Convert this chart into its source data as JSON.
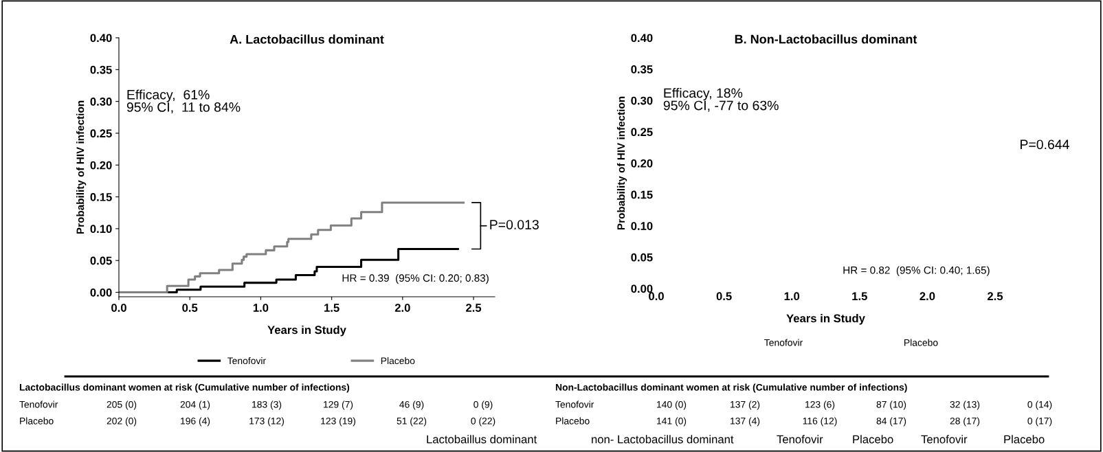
{
  "chart_data": [
    {
      "type": "step",
      "title": "A. Lactobacillus dominant",
      "xlabel": "Years in Study",
      "ylabel": "Probability of HIV infection",
      "xlim": [
        0,
        2.65
      ],
      "ylim": [
        -0.007,
        0.4
      ],
      "xticks": [
        {
          "value": 0,
          "label": "0.0"
        },
        {
          "value": 0.5,
          "label": "0.5"
        },
        {
          "value": 1,
          "label": "1.0"
        },
        {
          "value": 1.5,
          "label": "1.5"
        },
        {
          "value": 2,
          "label": "2.0"
        },
        {
          "value": 2.5,
          "label": "2.5"
        }
      ],
      "yticks": [
        {
          "value": 0,
          "label": "0.00"
        },
        {
          "value": 0.05,
          "label": "0.05"
        },
        {
          "value": 0.1,
          "label": "0.10"
        },
        {
          "value": 0.15,
          "label": "0.15"
        },
        {
          "value": 0.2,
          "label": "0.20"
        },
        {
          "value": 0.25,
          "label": "0.25"
        },
        {
          "value": 0.3,
          "label": "0.30"
        },
        {
          "value": 0.35,
          "label": "0.35"
        },
        {
          "value": 0.4,
          "label": "0.40"
        }
      ],
      "grid": false,
      "legend": "bottom",
      "marker": "none",
      "line_style": "solid",
      "series": [
        {
          "name": "Tenofovir",
          "color": "#000000",
          "x": [
            0,
            0.408,
            0.576,
            0.885,
            1.11,
            1.247,
            1.38,
            1.395,
            1.708,
            1.97,
            2.39
          ],
          "values": [
            0,
            0.004,
            0.009,
            0.015,
            0.02,
            0.027,
            0.033,
            0.04,
            0.051,
            0.068,
            0.068
          ]
        },
        {
          "name": "Placebo",
          "color": "#808080",
          "x": [
            0,
            0.34,
            0.49,
            0.536,
            0.572,
            0.706,
            0.801,
            0.867,
            0.88,
            0.9,
            1.036,
            1.095,
            1.186,
            1.195,
            1.356,
            1.404,
            1.494,
            1.639,
            1.708,
            1.855,
            2.43
          ],
          "values": [
            0,
            0.01,
            0.02,
            0.025,
            0.03,
            0.035,
            0.045,
            0.051,
            0.056,
            0.06,
            0.066,
            0.072,
            0.079,
            0.084,
            0.091,
            0.098,
            0.105,
            0.116,
            0.126,
            0.141,
            0.141
          ]
        }
      ],
      "annotations": [
        "Efficacy,  61%\n95% CI,  11 to 84%",
        "HR = 0.39  (95% CI: 0.20; 0.83)",
        "P=0.013",
        "Lactobacillus dominant women at risk (Cumulative number of infections)",
        "Tenofovir  205 (0)  204 (1)  183 (3)  129 (7)  46 (9)  0 (9)",
        "Placebo  202 (0)  196 (4)  173 (12)  123 (19)  51 (22)  0 (22)"
      ]
    },
    {
      "type": "step",
      "title": "B. Non-Lactobacillus dominant",
      "xlabel": "Years in Study",
      "ylabel": "Probability of HIV infection",
      "xlim": [
        0,
        2.5
      ],
      "ylim": [
        0,
        0.4
      ],
      "xticks": [
        {
          "value": 0,
          "label": "0.0"
        },
        {
          "value": 0.5,
          "label": "0.5"
        },
        {
          "value": 1,
          "label": "1.0"
        },
        {
          "value": 1.5,
          "label": "1.5"
        },
        {
          "value": 2,
          "label": "2.0"
        },
        {
          "value": 2.5,
          "label": "2.5"
        }
      ],
      "yticks": [
        {
          "value": 0,
          "label": "0.00"
        },
        {
          "value": 0.05,
          "label": "0.05"
        },
        {
          "value": 0.1,
          "label": "0.10"
        },
        {
          "value": 0.15,
          "label": "0.15"
        },
        {
          "value": 0.2,
          "label": "0.20"
        },
        {
          "value": 0.25,
          "label": "0.25"
        },
        {
          "value": 0.3,
          "label": "0.30"
        },
        {
          "value": 0.35,
          "label": "0.35"
        },
        {
          "value": 0.4,
          "label": "0.40"
        }
      ],
      "grid": false,
      "annotations": [
        "Efficacy, 18%\n95% CI, -77 to 63%",
        "HR = 0.82  (95% CI: 0.40; 1.65)",
        "P=0.644",
        "Non-Lactobacillus dominant women at risk (Cumulative number of infections)",
        "Tenofovir  140 (0)  137 (2)  123 (6)  87 (10)  32 (13)  0 (14)",
        "Placebo  141 (0)  137 (4)  116 (12)  84 (17)  28 (17)  0 (17)",
        "Tenofovir",
        "Placebo",
        "Lactobaillus dominant",
        "non- Lactobacillus dominant",
        "Tenofovir",
        "Placebo",
        "Tenofovir",
        "Placebo"
      ]
    }
  ]
}
